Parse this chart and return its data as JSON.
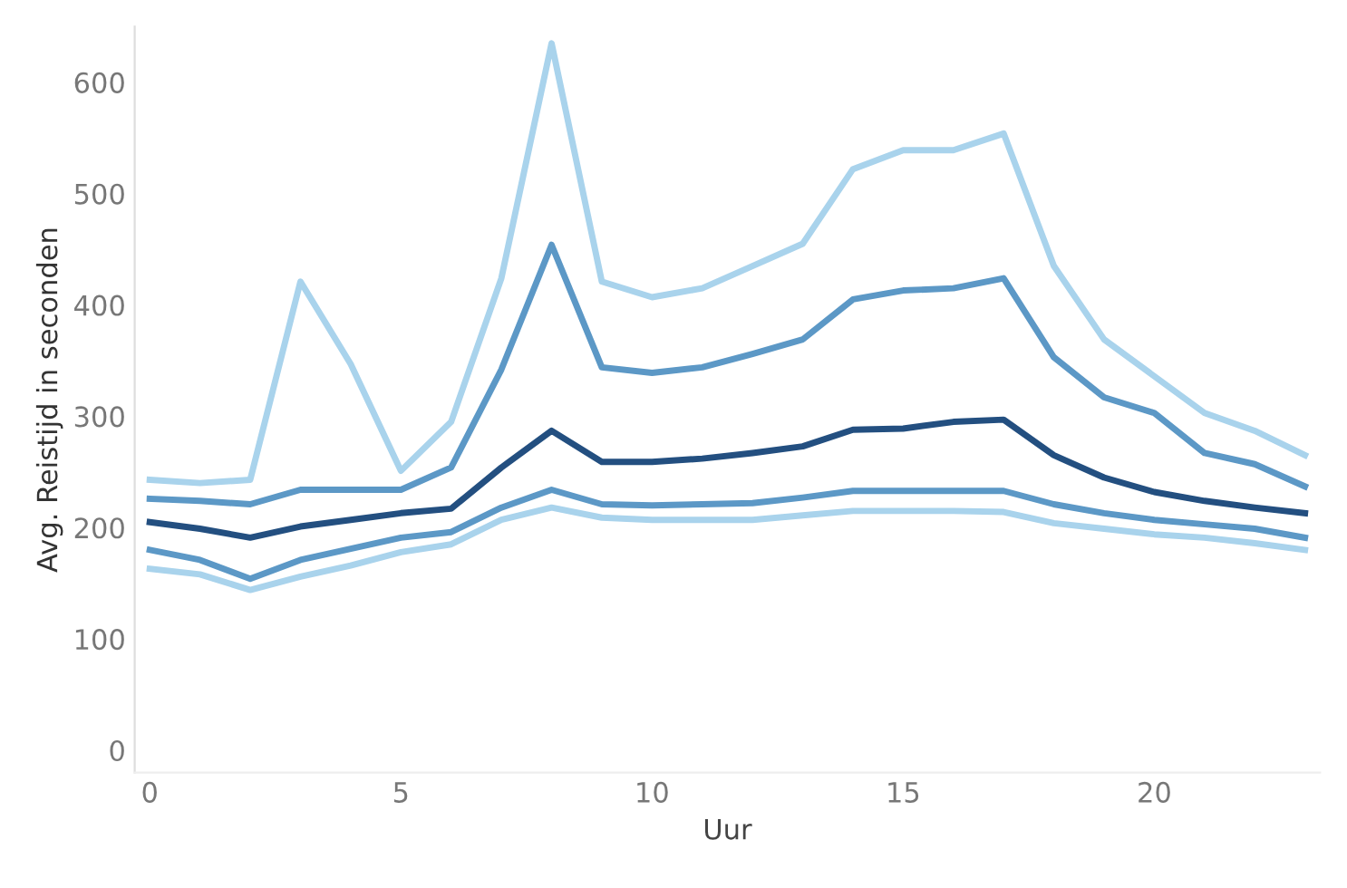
{
  "chart_data": {
    "type": "line",
    "xlabel": "Uur",
    "ylabel": "Avg. Reistijd in seconden",
    "x": [
      0,
      1,
      2,
      3,
      4,
      5,
      6,
      7,
      8,
      9,
      10,
      11,
      12,
      13,
      14,
      15,
      16,
      17,
      18,
      19,
      20,
      21,
      22,
      23
    ],
    "series": [
      {
        "color": "#a9d3ec",
        "values": [
          243,
          240,
          243,
          421,
          347,
          251,
          295,
          424,
          635,
          421,
          407,
          415,
          435,
          455,
          522,
          539,
          539,
          554,
          435,
          369,
          336,
          303,
          287,
          265
        ]
      },
      {
        "color": "#5c98c6",
        "values": [
          226,
          224,
          221,
          234,
          234,
          234,
          254,
          342,
          454,
          344,
          339,
          344,
          356,
          369,
          405,
          413,
          415,
          424,
          353,
          317,
          303,
          267,
          257,
          237
        ]
      },
      {
        "color": "#234f80",
        "values": [
          205,
          199,
          191,
          201,
          207,
          213,
          217,
          254,
          287,
          259,
          259,
          262,
          267,
          273,
          288,
          289,
          295,
          297,
          265,
          245,
          232,
          224,
          218,
          213
        ]
      },
      {
        "color": "#5c98c6",
        "values": [
          180,
          171,
          154,
          171,
          181,
          191,
          196,
          218,
          234,
          221,
          220,
          221,
          222,
          227,
          233,
          233,
          233,
          233,
          221,
          213,
          207,
          203,
          199,
          191
        ]
      },
      {
        "color": "#a9d3ec",
        "values": [
          163,
          158,
          144,
          156,
          166,
          178,
          185,
          207,
          218,
          209,
          207,
          207,
          207,
          211,
          215,
          215,
          215,
          214,
          204,
          199,
          194,
          191,
          186,
          180
        ]
      }
    ],
    "xlim": [
      -0.3,
      23.3
    ],
    "xticks": [
      0,
      5,
      10,
      15,
      20
    ],
    "ylim": [
      -20,
      650
    ],
    "yticks": [
      0,
      100,
      200,
      300,
      400,
      500,
      600
    ],
    "marker": "none",
    "line_style": "solid"
  }
}
